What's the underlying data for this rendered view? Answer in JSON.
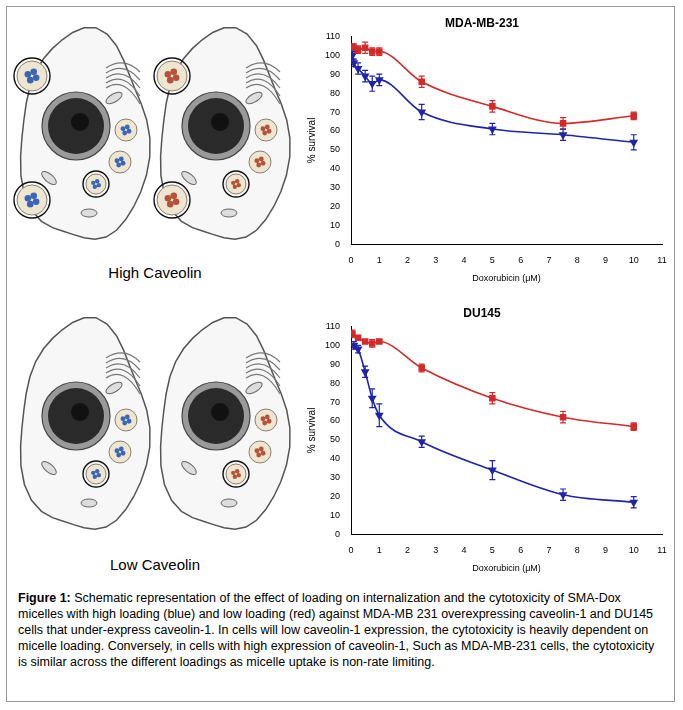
{
  "chart_data": [
    {
      "type": "scatter",
      "title": "MDA-MB-231",
      "xlabel": "Doxorubicin (μM)",
      "ylabel": "% survival",
      "xlim": [
        0,
        11
      ],
      "xticks": [
        0,
        1,
        2,
        3,
        4,
        5,
        6,
        7,
        8,
        9,
        10,
        11
      ],
      "ylim": [
        0,
        110
      ],
      "yticks": [
        0,
        10,
        20,
        30,
        40,
        50,
        60,
        70,
        80,
        90,
        100,
        110
      ],
      "grid": false,
      "series": [
        {
          "color": "#d42a2a",
          "marker": "square",
          "line_style": "solid",
          "x": [
            0.05,
            0.1,
            0.25,
            0.5,
            0.75,
            1,
            2.5,
            5,
            7.5,
            10
          ],
          "values": [
            104,
            104,
            103,
            104,
            102,
            102,
            86,
            73,
            64,
            68
          ],
          "errors": [
            2,
            2,
            2,
            3,
            2,
            2,
            3,
            3,
            3,
            2
          ]
        },
        {
          "color": "#1f24a8",
          "marker": "triangle-down",
          "line_style": "solid",
          "x": [
            0.05,
            0.1,
            0.25,
            0.5,
            0.75,
            1,
            2.5,
            5,
            7.5,
            10
          ],
          "values": [
            100,
            96,
            93,
            89,
            85,
            87,
            70,
            61,
            58,
            54
          ],
          "errors": [
            2,
            2,
            3,
            3,
            4,
            3,
            4,
            3,
            3,
            4
          ]
        }
      ]
    },
    {
      "type": "scatter",
      "title": "DU145",
      "xlabel": "Doxorubicin (μM)",
      "ylabel": "% survival",
      "xlim": [
        0,
        11
      ],
      "xticks": [
        0,
        1,
        2,
        3,
        4,
        5,
        6,
        7,
        8,
        9,
        10,
        11
      ],
      "ylim": [
        0,
        110
      ],
      "yticks": [
        0,
        10,
        20,
        30,
        40,
        50,
        60,
        70,
        80,
        90,
        100,
        110
      ],
      "grid": false,
      "series": [
        {
          "color": "#d42a2a",
          "marker": "square",
          "line_style": "solid",
          "x": [
            0.05,
            0.25,
            0.5,
            0.75,
            1,
            2.5,
            5,
            7.5,
            10
          ],
          "values": [
            106,
            104,
            102,
            101,
            102,
            88,
            72,
            62,
            57
          ],
          "errors": [
            2,
            1,
            1,
            2,
            1,
            2,
            3,
            3,
            2
          ]
        },
        {
          "color": "#1f24a8",
          "marker": "triangle-down",
          "line_style": "solid",
          "x": [
            0.1,
            0.25,
            0.5,
            0.75,
            1,
            2.5,
            5,
            7.5,
            10
          ],
          "values": [
            100,
            98,
            86,
            72,
            63,
            49,
            34,
            21,
            17
          ],
          "errors": [
            2,
            2,
            3,
            5,
            6,
            3,
            5,
            3,
            3
          ]
        }
      ]
    }
  ],
  "schematic": {
    "labels": [
      "High Caveolin",
      "Low Caveolin"
    ]
  },
  "caption": {
    "label": "Figure 1:",
    "text": "Schematic representation of the effect of loading on internalization and the cytotoxicity of SMA-Dox micelles with high loading (blue) and low loading (red) against MDA-MB 231 overexpressing caveolin-1 and DU145 cells that under-express caveolin-1. In cells will low caveolin-1 expression, the cytotoxicity is heavily dependent on micelle loading. Conversely, in cells with high expression of caveolin-1, Such as MDA-MB-231 cells, the cytotoxicity is similar across the different loadings as micelle uptake is non-rate limiting."
  }
}
